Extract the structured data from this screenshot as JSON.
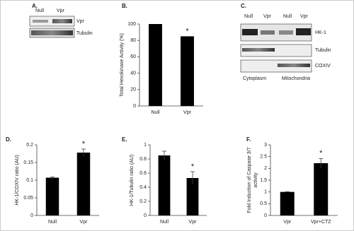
{
  "blots": {
    "A": {
      "panel": "A.",
      "lanes": [
        "Null",
        "Vpr"
      ],
      "bands": [
        "Vpr",
        "Tubulin"
      ]
    },
    "C": {
      "panel": "C.",
      "lanes": [
        "Null",
        "Vpr",
        "Null",
        "Vpr"
      ],
      "bands": [
        "HK-1",
        "Tubulin",
        "COXIV"
      ],
      "fractions": [
        "Cytoplasm",
        "Mitochondria"
      ]
    }
  },
  "chart_data": [
    {
      "type": "bar",
      "panel": "B.",
      "ylabel": "Total Hexokinase Activity (%)",
      "categories": [
        "Null",
        "Vpr"
      ],
      "values": [
        100,
        85
      ],
      "color": "#000000",
      "ylim": [
        0,
        100
      ],
      "yticks": [
        0,
        20,
        40,
        60,
        80,
        100
      ],
      "annotation": "*"
    },
    {
      "type": "bar",
      "panel": "D.",
      "ylabel": "HK-1/COXIV ratio (AU)",
      "categories": [
        "Null",
        "Vpr"
      ],
      "values": [
        0.107,
        0.178
      ],
      "errors": [
        0.002,
        0.01
      ],
      "color": "#000000",
      "ylim": [
        0,
        0.2
      ],
      "yticks": [
        0,
        0.05,
        0.1,
        0.15,
        0.2
      ],
      "annotation": "*"
    },
    {
      "type": "bar",
      "panel": "E.",
      "ylabel": "HK-1/Tubulin ratio (AU)",
      "categories": [
        "Null",
        "Vpr"
      ],
      "values": [
        0.85,
        0.53
      ],
      "errors": [
        0.06,
        0.09
      ],
      "color": "#000000",
      "ylim": [
        0,
        1
      ],
      "yticks": [
        0,
        0.2,
        0.4,
        0.6,
        0.8,
        1
      ],
      "annotation": "*"
    },
    {
      "type": "bar",
      "panel": "F.",
      "ylabel": [
        "Fold Induction of Caspase 3/7",
        "activity"
      ],
      "categories": [
        "Vpr",
        "Vpr+CTZ"
      ],
      "values": [
        1.0,
        2.22
      ],
      "errors": [
        0.01,
        0.2
      ],
      "color": "#000000",
      "ylim": [
        0,
        3
      ],
      "yticks": [
        0,
        0.5,
        1,
        1.5,
        2,
        2.5,
        3
      ],
      "annotation": "*"
    }
  ]
}
